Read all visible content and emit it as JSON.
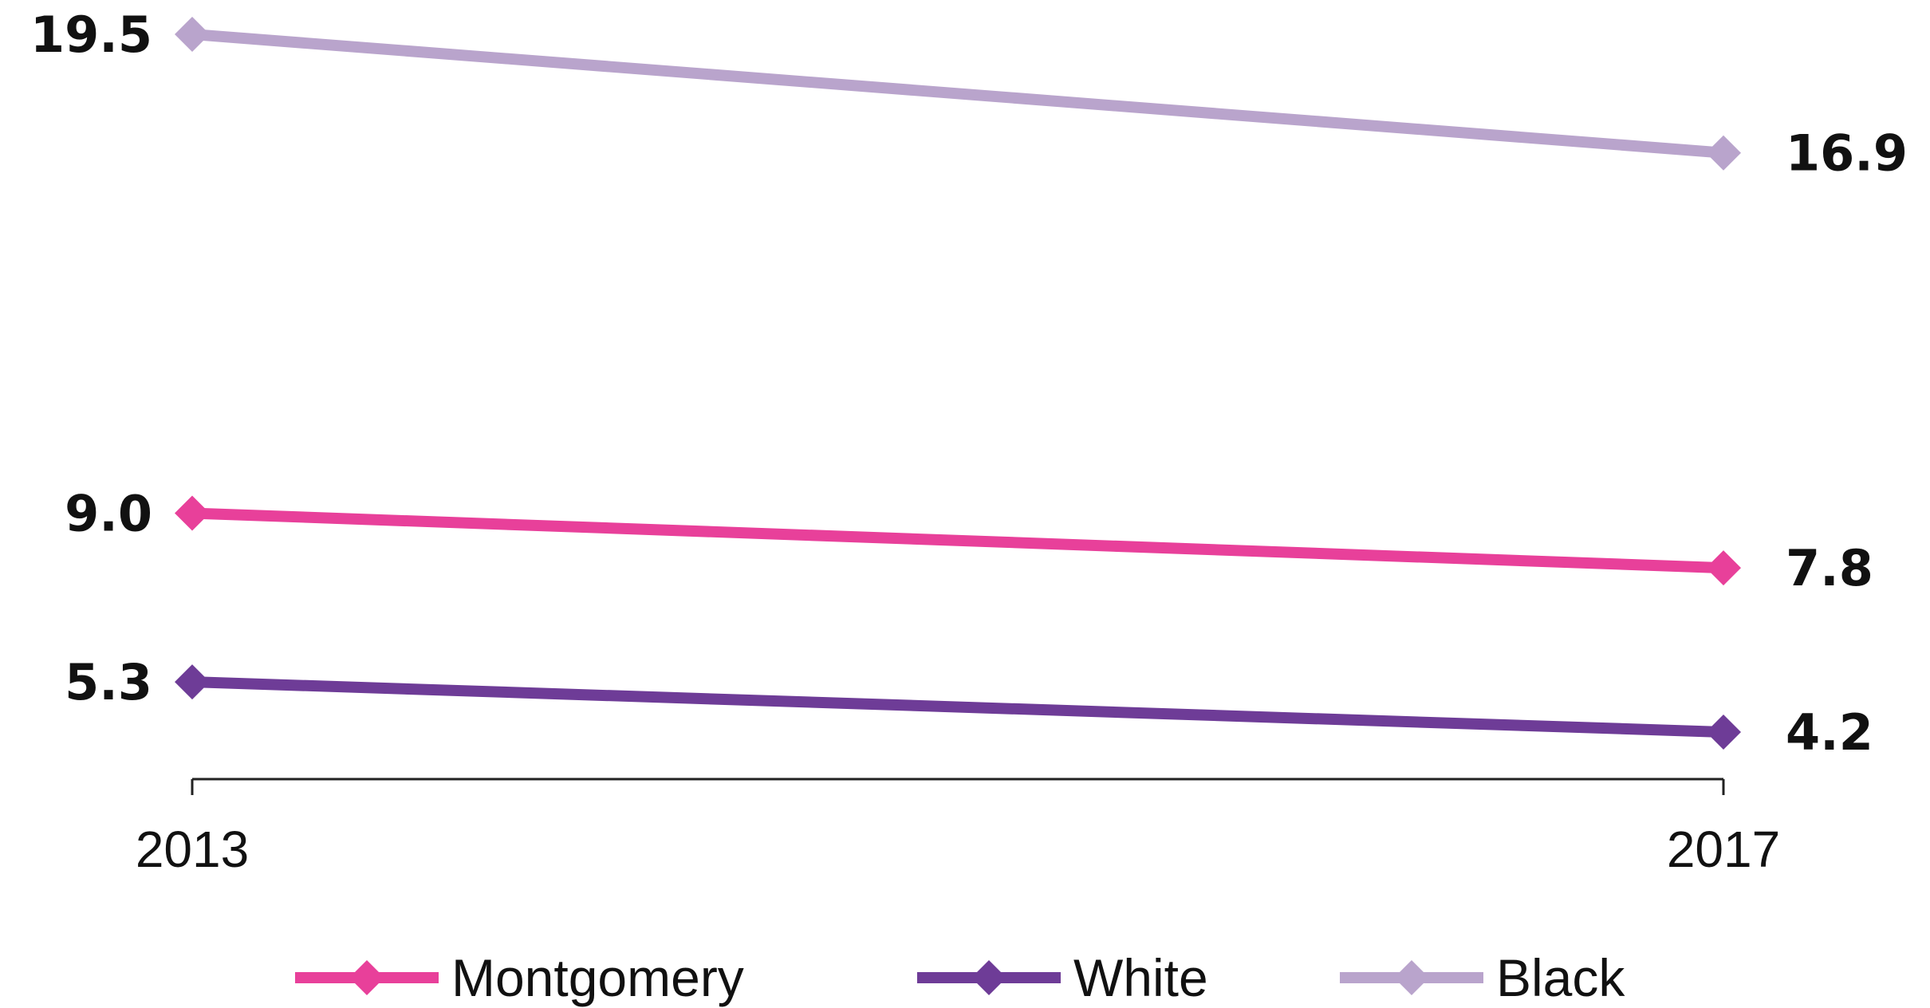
{
  "chart_data": {
    "type": "line",
    "title": "",
    "xlabel": "",
    "ylabel": "",
    "x": [
      "2013",
      "2017"
    ],
    "series": [
      {
        "name": "Montgomery",
        "values": [
          9.0,
          7.8
        ],
        "labels": [
          "9.0",
          "7.8"
        ],
        "color": "#e8409a"
      },
      {
        "name": "White",
        "values": [
          5.3,
          4.2
        ],
        "labels": [
          "5.3",
          "4.2"
        ],
        "color": "#6e3c97"
      },
      {
        "name": "Black",
        "values": [
          19.5,
          16.9
        ],
        "labels": [
          "19.5",
          "16.9"
        ],
        "color": "#b9a4cc"
      }
    ],
    "ylim": [
      2,
      20
    ],
    "grid": false,
    "legend": "bottom",
    "marker": "diamond"
  }
}
